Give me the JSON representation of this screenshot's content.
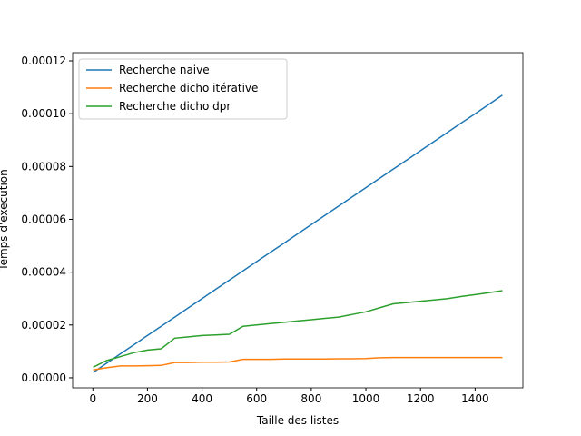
{
  "chart_data": {
    "type": "line",
    "xlabel": "Taille des listes",
    "ylabel": "Temps d'exécution",
    "x": [
      1,
      50,
      100,
      150,
      200,
      250,
      300,
      350,
      400,
      450,
      500,
      550,
      600,
      650,
      700,
      750,
      800,
      850,
      900,
      950,
      1000,
      1050,
      1100,
      1150,
      1200,
      1250,
      1300,
      1350,
      1400,
      1450,
      1500
    ],
    "series": [
      {
        "name": "Recherche naive",
        "color": "#1f77b4",
        "values": [
          2e-06,
          5.5e-06,
          9e-06,
          1.25e-05,
          1.6e-05,
          1.95e-05,
          2.3e-05,
          2.65e-05,
          3e-05,
          3.35e-05,
          3.7e-05,
          4.05e-05,
          4.4e-05,
          4.75e-05,
          5.1e-05,
          5.45e-05,
          5.8e-05,
          6.15e-05,
          6.5e-05,
          6.85e-05,
          7.2e-05,
          7.55e-05,
          7.9e-05,
          8.25e-05,
          8.6e-05,
          8.95e-05,
          9.3e-05,
          9.65e-05,
          0.0001,
          0.0001035,
          0.000107
        ]
      },
      {
        "name": "Recherche dicho itérative",
        "color": "#ff7f0e",
        "values": [
          3e-06,
          3.8e-06,
          4.5e-06,
          4.5e-06,
          4.6e-06,
          4.7e-06,
          5.8e-06,
          5.8e-06,
          5.9e-06,
          5.9e-06,
          6e-06,
          7e-06,
          7e-06,
          7e-06,
          7.1e-06,
          7.1e-06,
          7.1e-06,
          7.1e-06,
          7.2e-06,
          7.2e-06,
          7.3e-06,
          7.6e-06,
          7.7e-06,
          7.7e-06,
          7.7e-06,
          7.7e-06,
          7.7e-06,
          7.7e-06,
          7.7e-06,
          7.7e-06,
          7.7e-06
        ]
      },
      {
        "name": "Recherche dicho dpr",
        "color": "#2ca02c",
        "values": [
          4e-06,
          6.5e-06,
          8e-06,
          9.5e-06,
          1.05e-05,
          1.1e-05,
          1.5e-05,
          1.55e-05,
          1.6e-05,
          1.62e-05,
          1.65e-05,
          1.95e-05,
          2e-05,
          2.05e-05,
          2.1e-05,
          2.15e-05,
          2.2e-05,
          2.25e-05,
          2.3e-05,
          2.4e-05,
          2.5e-05,
          2.65e-05,
          2.8e-05,
          2.85e-05,
          2.9e-05,
          2.95e-05,
          3e-05,
          3.08e-05,
          3.15e-05,
          3.22e-05,
          3.3e-05
        ]
      }
    ],
    "xlim": [
      -74,
      1575
    ],
    "xticks": [
      0,
      200,
      400,
      600,
      800,
      1000,
      1200,
      1400
    ],
    "ylim": [
      -3.8e-06,
      0.0001231
    ],
    "yticks": [
      {
        "value": 0,
        "label": "0.00000"
      },
      {
        "value": 2e-05,
        "label": "0.00002"
      },
      {
        "value": 4e-05,
        "label": "0.00004"
      },
      {
        "value": 6e-05,
        "label": "0.00006"
      },
      {
        "value": 8e-05,
        "label": "0.00008"
      },
      {
        "value": 0.0001,
        "label": "0.00010"
      },
      {
        "value": 0.00012,
        "label": "0.00012"
      }
    ],
    "legend": "upper left"
  }
}
